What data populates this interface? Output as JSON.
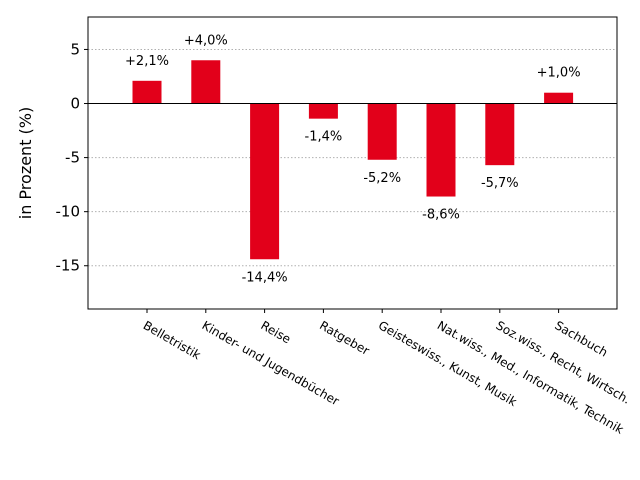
{
  "chart_data": {
    "type": "bar",
    "categories": [
      "Belletristik",
      "Kinder- und Jugendbücher",
      "Reise",
      "Ratgeber",
      "Geisteswiss., Kunst, Musik",
      "Nat.wiss., Med., Informatik, Technik",
      "Soz.wiss., Recht, Wirtsch.",
      "Sachbuch"
    ],
    "values": [
      2.1,
      4.0,
      -14.4,
      -1.4,
      -5.2,
      -8.6,
      -5.7,
      1.0
    ],
    "data_labels": [
      "+2,1%",
      "+4,0%",
      "-14,4%",
      "-1,4%",
      "-5,2%",
      "-8,6%",
      "-5,7%",
      "+1,0%"
    ],
    "ylabel": "in Prozent (%)",
    "ylim": [
      -19,
      8
    ],
    "yticks": [
      5,
      0,
      -5,
      -10,
      -15
    ],
    "ytick_labels": [
      "5",
      "0",
      "-5",
      "-10",
      "-15"
    ],
    "grid": "horizontal dotted",
    "bar_color": "#e2001a"
  }
}
